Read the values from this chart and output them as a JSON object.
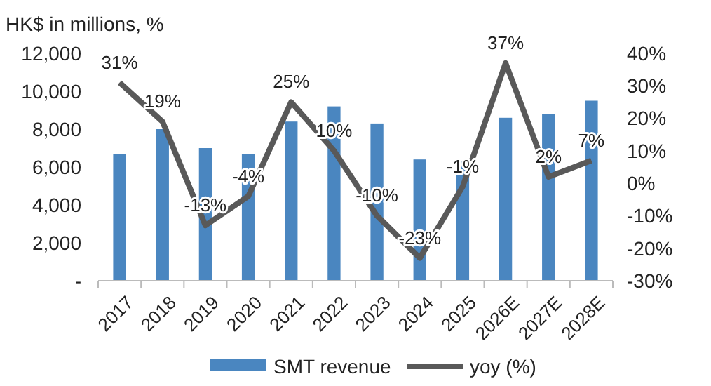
{
  "chart_data": {
    "type": "bar",
    "ylabel": "HK$ in millions, %",
    "categories": [
      "2017",
      "2018",
      "2019",
      "2020",
      "2021",
      "2022",
      "2023",
      "2024",
      "2025",
      "2026E",
      "2027E",
      "2028E"
    ],
    "series": [
      {
        "name": "SMT revenue",
        "color": "#4a86c0",
        "values": [
          6700,
          8000,
          7000,
          6700,
          8400,
          9200,
          8300,
          6400,
          6300,
          8600,
          8800,
          9500
        ]
      },
      {
        "name": "yoy (%)",
        "type": "line",
        "axis": "y2",
        "color": "#595959",
        "values": [
          31,
          19,
          -13,
          -4,
          25,
          10,
          -10,
          -23,
          -1,
          37,
          2,
          7
        ],
        "value_labels": [
          "31%",
          "19%",
          "-13%",
          "-4%",
          "25%",
          "10%",
          "-10%",
          "-23%",
          "-1%",
          "37%",
          "2%",
          "7%"
        ]
      }
    ],
    "ylim": [
      0,
      12000
    ],
    "yticks": [
      {
        "value": 0,
        "label": "-"
      },
      {
        "value": 2000,
        "label": "2,000"
      },
      {
        "value": 4000,
        "label": "4,000"
      },
      {
        "value": 6000,
        "label": "6,000"
      },
      {
        "value": 8000,
        "label": "8,000"
      },
      {
        "value": 10000,
        "label": "10,000"
      },
      {
        "value": 12000,
        "label": "12,000"
      }
    ],
    "y2lim": [
      -30,
      40
    ],
    "y2ticks": [
      {
        "value": -30,
        "label": "-30%"
      },
      {
        "value": -20,
        "label": "-20%"
      },
      {
        "value": -10,
        "label": "-10%"
      },
      {
        "value": 0,
        "label": "0%"
      },
      {
        "value": 10,
        "label": "10%"
      },
      {
        "value": 20,
        "label": "20%"
      },
      {
        "value": 30,
        "label": "30%"
      },
      {
        "value": 40,
        "label": "40%"
      }
    ],
    "legend": "bottom",
    "grid": false,
    "marker": "none",
    "line_style": "solid"
  }
}
